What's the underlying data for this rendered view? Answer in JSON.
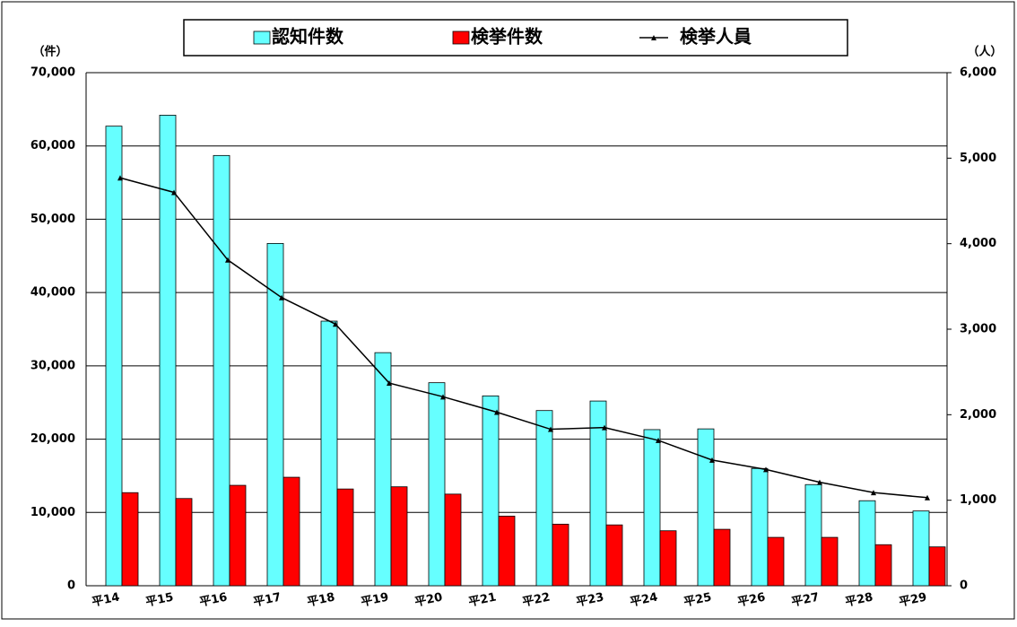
{
  "chart_data": {
    "type": "bar",
    "y_unit_label": "（件）",
    "y2_unit_label": "（人）",
    "categories": [
      "平14",
      "平15",
      "平16",
      "平17",
      "平18",
      "平19",
      "平20",
      "平21",
      "平22",
      "平23",
      "平24",
      "平25",
      "平26",
      "平27",
      "平28",
      "平29"
    ],
    "series": [
      {
        "name": "認知件数",
        "type": "bar",
        "color": "#66ffff",
        "values": [
          62700,
          64200,
          58700,
          46700,
          36100,
          31800,
          27700,
          25900,
          23900,
          25200,
          21300,
          21400,
          16000,
          13800,
          11600,
          10200
        ]
      },
      {
        "name": "検挙件数",
        "type": "bar",
        "color": "#ff0000",
        "values": [
          12700,
          11900,
          13700,
          14800,
          13200,
          13500,
          12500,
          9500,
          8400,
          8300,
          7500,
          7700,
          6600,
          6600,
          5600,
          5300
        ]
      },
      {
        "name": "検挙人員",
        "type": "line",
        "color": "#000000",
        "axis": "y2",
        "values": [
          4770,
          4600,
          3810,
          3370,
          3060,
          2370,
          2210,
          2030,
          1830,
          1850,
          1700,
          1470,
          1360,
          1210,
          1090,
          1030
        ]
      }
    ],
    "ylim": [
      0,
      70000
    ],
    "yticks": [
      0,
      {
        "value": 10000,
        "label": "10,000"
      },
      {
        "value": 20000,
        "label": "20,000"
      },
      {
        "value": 30000,
        "label": "30,000"
      },
      {
        "value": 40000,
        "label": "40,000"
      },
      {
        "value": 50000,
        "label": "50,000"
      },
      {
        "value": 60000,
        "label": "60,000"
      },
      {
        "value": 70000,
        "label": "70,000"
      }
    ],
    "y2lim": [
      0,
      6000
    ],
    "y2ticks": [
      0,
      {
        "value": 1000,
        "label": "1,000"
      },
      {
        "value": 2000,
        "label": "2,000"
      },
      {
        "value": 3000,
        "label": "3,000"
      },
      {
        "value": 4000,
        "label": "4,000"
      },
      {
        "value": 5000,
        "label": "5,000"
      },
      {
        "value": 6000,
        "label": "6,000"
      }
    ],
    "grid": true,
    "legend": "top"
  }
}
